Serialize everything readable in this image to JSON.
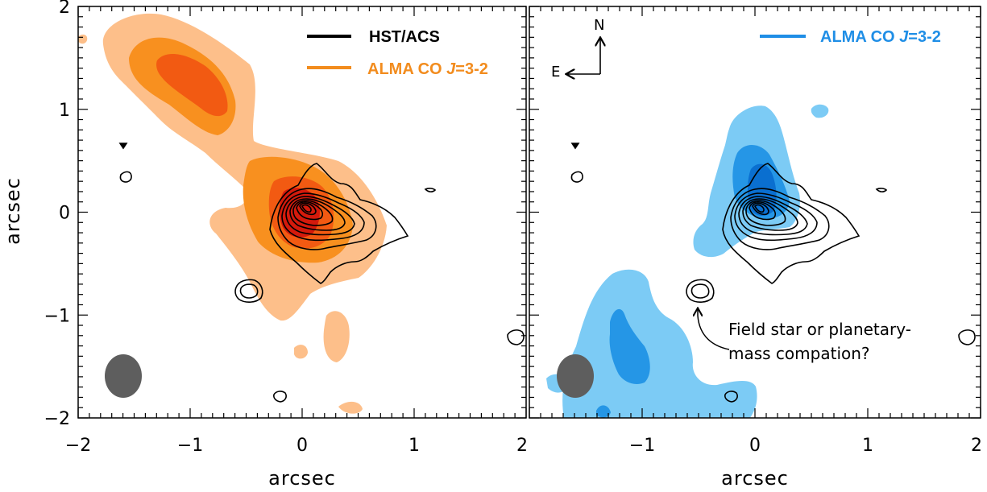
{
  "chart_data": [
    {
      "type": "contour",
      "panel": "left",
      "xlabel": "arcsec",
      "ylabel": "arcsec",
      "xlim": [
        -2,
        2
      ],
      "ylim": [
        -2,
        2
      ],
      "x_ticks": [
        "−2",
        "−1",
        "0",
        "1",
        "2"
      ],
      "y_ticks": [
        "2",
        "1",
        "0",
        "−1",
        "−2"
      ],
      "legend": [
        {
          "label": "HST/ACS",
          "color": "#000000"
        },
        {
          "label_prefix": "ALMA CO ",
          "label_italic": "J",
          "label_suffix": "=3-2",
          "color": "#f28c1e"
        }
      ],
      "fill_colors": [
        "#fdbf8a",
        "#f8901f",
        "#f25a12",
        "#d41a0c"
      ],
      "beam": {
        "x": -1.6,
        "y": -1.65,
        "color": "#5e5e5e"
      }
    },
    {
      "type": "contour",
      "panel": "right",
      "xlabel": "arcsec",
      "xlim": [
        -2,
        2
      ],
      "ylim": [
        -2,
        2
      ],
      "x_ticks": [
        "−1",
        "0",
        "1",
        "2"
      ],
      "legend": [
        {
          "label_prefix": "ALMA CO ",
          "label_italic": "J",
          "label_suffix": "=3-2",
          "color": "#1f8ee6"
        }
      ],
      "fill_colors": [
        "#7ccbf5",
        "#2596e6",
        "#0a6fd0"
      ],
      "beam": {
        "x": -1.6,
        "y": -1.65,
        "color": "#5e5e5e"
      }
    }
  ],
  "compass": {
    "north": "N",
    "east": "E"
  },
  "annotation": {
    "line1": "Field star or planetary-",
    "line2": "mass compation?"
  }
}
